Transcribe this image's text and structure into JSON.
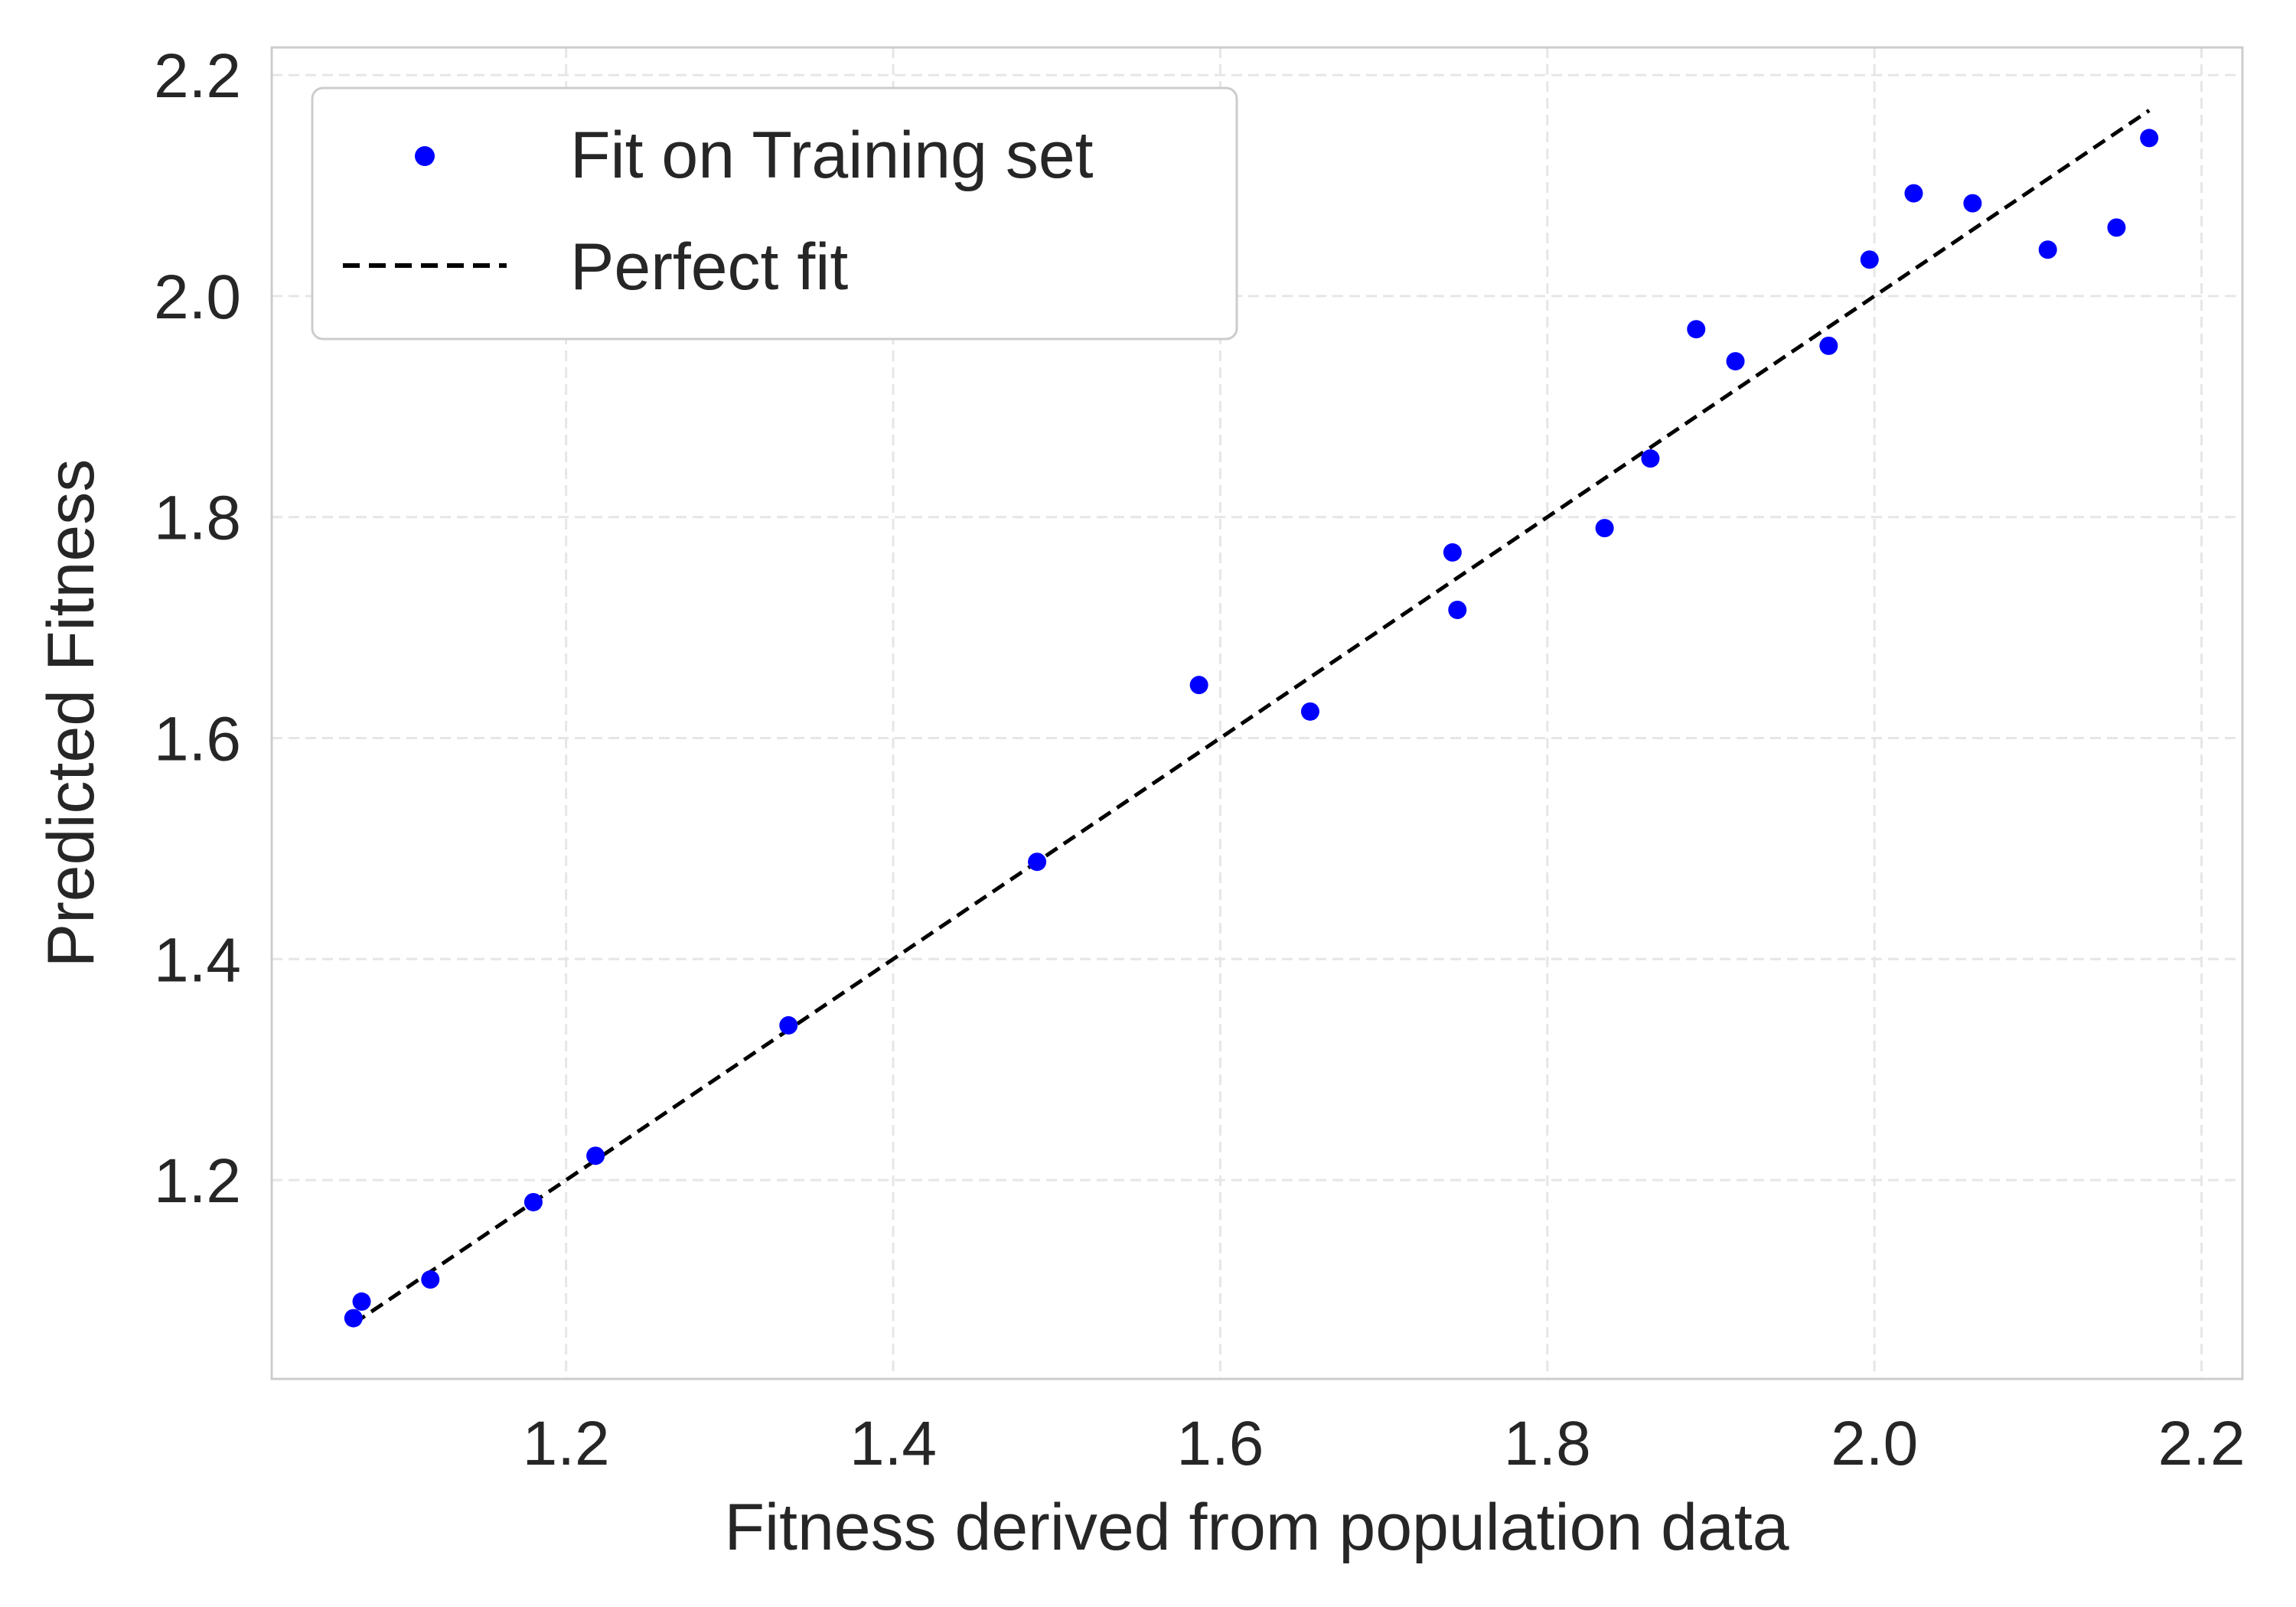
{
  "chart_data": {
    "type": "scatter",
    "xlabel": "Fitness derived from population data",
    "ylabel": "Predicted Fitness",
    "xlim": [
      1.02,
      2.225
    ],
    "ylim": [
      1.02,
      2.225
    ],
    "xticks": [
      1.2,
      1.4,
      1.6,
      1.8,
      2.0,
      2.2
    ],
    "yticks": [
      1.2,
      1.4,
      1.6,
      1.8,
      2.0,
      2.2
    ],
    "xtick_labels": [
      "1.2",
      "1.4",
      "1.6",
      "1.8",
      "2.0",
      "2.2"
    ],
    "ytick_labels": [
      "1.2",
      "1.4",
      "1.6",
      "1.8",
      "2.0",
      "2.2"
    ],
    "grid": true,
    "legend_position": "top-left",
    "series": [
      {
        "name": "Fit on Training set",
        "kind": "scatter",
        "color": "#0000ff",
        "points": [
          [
            1.07,
            1.075
          ],
          [
            1.075,
            1.09
          ],
          [
            1.117,
            1.11
          ],
          [
            1.18,
            1.18
          ],
          [
            1.218,
            1.222
          ],
          [
            1.336,
            1.34
          ],
          [
            1.488,
            1.488
          ],
          [
            1.587,
            1.648
          ],
          [
            1.655,
            1.624
          ],
          [
            1.742,
            1.768
          ],
          [
            1.745,
            1.716
          ],
          [
            1.835,
            1.79
          ],
          [
            1.863,
            1.853
          ],
          [
            1.891,
            1.97
          ],
          [
            1.915,
            1.941
          ],
          [
            1.972,
            1.955
          ],
          [
            1.997,
            2.033
          ],
          [
            2.024,
            2.093
          ],
          [
            2.06,
            2.084
          ],
          [
            2.106,
            2.042
          ],
          [
            2.148,
            2.062
          ],
          [
            2.168,
            2.143
          ]
        ]
      },
      {
        "name": "Perfect fit",
        "kind": "line",
        "color": "#000000",
        "dash": "dashed",
        "points": [
          [
            1.07,
            1.07
          ],
          [
            2.168,
            2.168
          ]
        ]
      }
    ]
  },
  "colors": {
    "grid": "#e6e6e6",
    "spine": "#cccccc",
    "text": "#262626",
    "background": "#ffffff"
  }
}
